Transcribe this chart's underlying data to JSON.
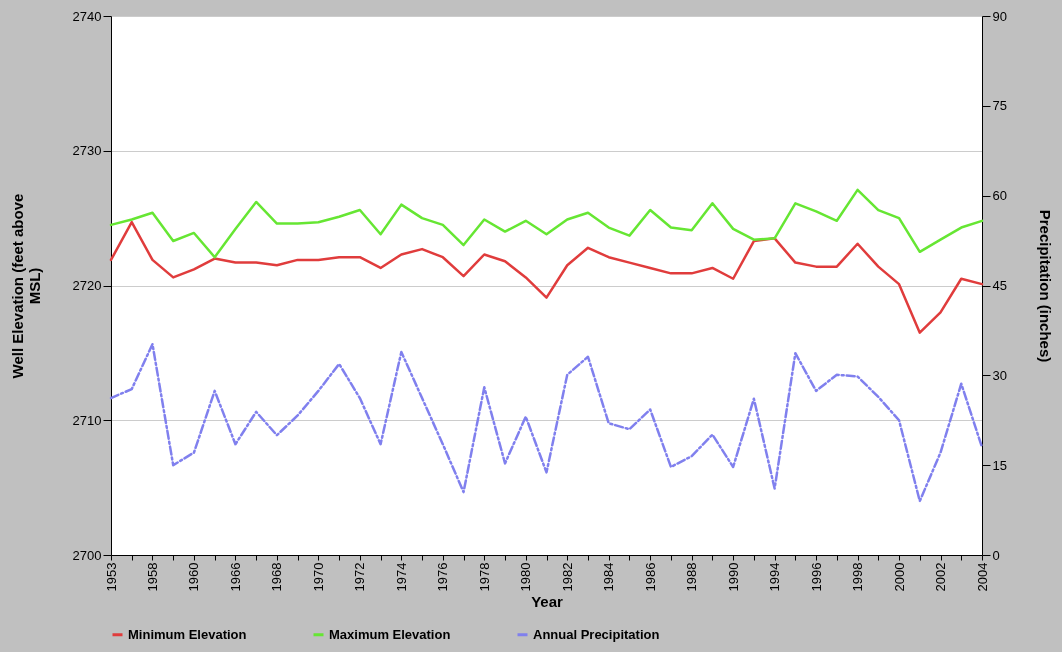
{
  "chart_data": {
    "type": "line",
    "xlabel": "Year",
    "ylabel": "Well Elevation (feet above MSL)",
    "y2label": "Precipitation (inches)",
    "categories": [
      "1953",
      null,
      "1958",
      null,
      "1960",
      null,
      "1966",
      null,
      "1968",
      null,
      "1970",
      null,
      "1972",
      null,
      "1974",
      null,
      "1976",
      null,
      "1978",
      null,
      "1980",
      null,
      "1982",
      null,
      "1984",
      null,
      "1986",
      null,
      "1988",
      null,
      "1990",
      null,
      "1994",
      null,
      "1996",
      null,
      "1998",
      null,
      "2000",
      null,
      "2002",
      null,
      "2004"
    ],
    "series": [
      {
        "name": "Minimum Elevation",
        "color": "#e03c3c",
        "line_style": "solid",
        "values": [
          2721.9,
          2724.7,
          2721.9,
          2720.6,
          2721.2,
          2722.0,
          2721.7,
          2721.7,
          2721.5,
          2721.9,
          2721.9,
          2722.1,
          2722.1,
          2721.3,
          2722.3,
          2722.7,
          2722.1,
          2720.7,
          2722.3,
          2721.8,
          2720.6,
          2719.1,
          2721.5,
          2722.8,
          2722.1,
          2721.7,
          2721.3,
          2720.9,
          2720.9,
          2721.3,
          2720.5,
          2723.3,
          2723.5,
          2721.7,
          2721.4,
          2721.4,
          2723.1,
          2721.4,
          2720.1,
          2716.5,
          2718.0,
          2720.5,
          2720.1
        ]
      },
      {
        "name": "Maximum Elevation",
        "color": "#66e633",
        "line_style": "solid",
        "values": [
          2724.5,
          2724.9,
          2725.4,
          2723.3,
          2723.9,
          2722.1,
          2724.2,
          2726.2,
          2724.6,
          2724.6,
          2724.7,
          2725.1,
          2725.6,
          2723.8,
          2726.0,
          2725.0,
          2724.5,
          2723.0,
          2724.9,
          2724.0,
          2724.8,
          2723.8,
          2724.9,
          2725.4,
          2724.3,
          2723.7,
          2725.6,
          2724.3,
          2724.1,
          2726.1,
          2724.2,
          2723.4,
          2723.5,
          2726.1,
          2725.5,
          2724.8,
          2727.1,
          2725.6,
          2725.0,
          2722.5,
          2723.4,
          2724.3,
          2724.8
        ]
      },
      {
        "name": "Annual Precipitation",
        "color": "#8080ee",
        "line_style": "dashed",
        "axis": "y2",
        "values": [
          26.2,
          27.7,
          35.2,
          15.0,
          17.1,
          27.4,
          18.5,
          23.9,
          20.0,
          23.3,
          27.4,
          31.9,
          26.2,
          18.5,
          33.9,
          26.2,
          18.5,
          10.5,
          28.0,
          15.3,
          23.1,
          13.8,
          30.1,
          33.1,
          22.0,
          21.0,
          24.3,
          14.7,
          16.5,
          20.1,
          14.7,
          26.1,
          11.1,
          33.7,
          27.4,
          30.1,
          29.8,
          26.4,
          22.5,
          9.0,
          17.1,
          28.6,
          18.0
        ]
      }
    ],
    "ylim": [
      2700,
      2740
    ],
    "yticks": [
      2700,
      2710,
      2720,
      2730,
      2740
    ],
    "y2lim": [
      0,
      90
    ],
    "y2ticks": [
      0,
      15,
      30,
      45,
      60,
      75,
      90
    ],
    "grid": "y",
    "legend": "bottom"
  }
}
